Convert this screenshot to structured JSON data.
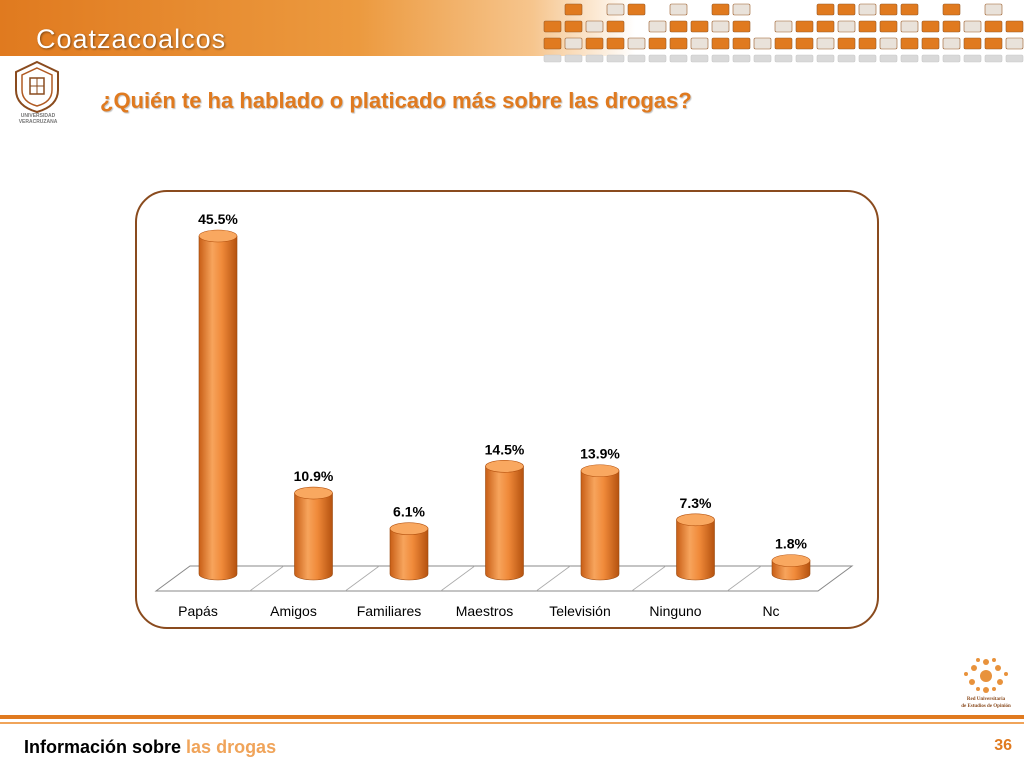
{
  "header": {
    "title": "Coatzacoalcos"
  },
  "logo_uv": {
    "caption": "UNIVERSIDAD VERACRUZANA"
  },
  "question": "¿Quién te ha hablado o platicado más sobre las drogas?",
  "colors": {
    "accent": "#e07a1f",
    "bar": "#f08a3a",
    "frame": "#8a4b1e"
  },
  "chart_data": {
    "type": "bar",
    "categories": [
      "Papás",
      "Amigos",
      "Familiares",
      "Maestros",
      "Televisión",
      "Ninguno",
      "Nc"
    ],
    "values": [
      45.5,
      10.9,
      6.1,
      14.5,
      13.9,
      7.3,
      1.8
    ],
    "value_labels": [
      "45.5%",
      "10.9%",
      "6.1%",
      "14.5%",
      "13.9%",
      "7.3%",
      "1.8%"
    ],
    "unit": "%",
    "style": "3d-cylinder",
    "grid": false,
    "legend": "none"
  },
  "footer": {
    "text_primary": "Información sobre",
    "text_accent": "las drogas",
    "page_number": "36",
    "logo_caption_line1": "Red Universitaria",
    "logo_caption_line2": "de Estudios de Opinión"
  }
}
